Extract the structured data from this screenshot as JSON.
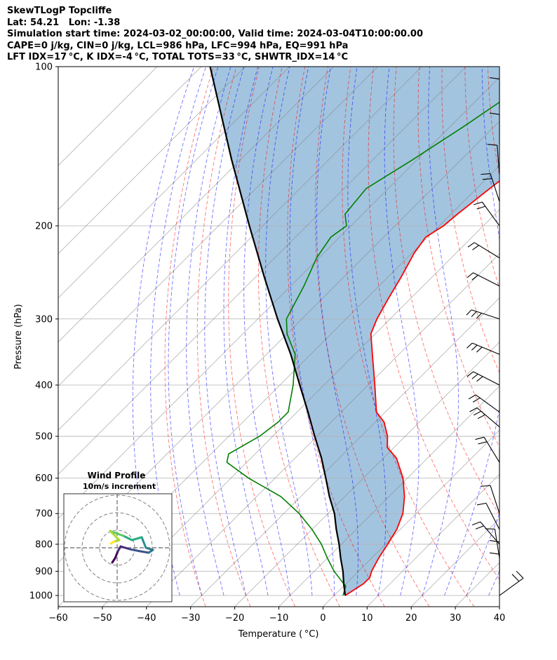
{
  "header": {
    "line1": "SkewTLogP Topcliffe",
    "line2": "Lat: 54.21   Lon: -1.38",
    "line3": "Simulation start time: 2024-03-02_00:00:00, Valid time: 2024-03-04T10:00:00.00",
    "line4": "CAPE=0 j/kg, CIN=0 j/kg, LCL=986 hPa, LFC=994 hPa, EQ=991 hPa",
    "line5": "LFT IDX=17 °C, K IDX=-4 °C, TOTAL TOTS=33 °C, SHWTR_IDX=14 °C"
  },
  "chart_data": {
    "type": "line",
    "xlabel": "Temperature ( °C)",
    "ylabel": "Pressure (hPa)",
    "xlim": [
      -60,
      40
    ],
    "ylim": [
      1050,
      100
    ],
    "y_scale": "log",
    "x_ticks": [
      -60,
      -50,
      -40,
      -30,
      -20,
      -10,
      0,
      10,
      20,
      30,
      40
    ],
    "x_tick_labels": [
      "−60",
      "−50",
      "−40",
      "−30",
      "−20",
      "−10",
      "0",
      "10",
      "20",
      "30",
      "40"
    ],
    "y_ticks": [
      1000,
      900,
      800,
      700,
      600,
      500,
      400,
      300,
      200,
      100
    ],
    "y_tick_labels": [
      "1000",
      "900",
      "800",
      "700",
      "600",
      "500",
      "400",
      "300",
      "200",
      "100"
    ],
    "grid": true,
    "colors": {
      "temperature": "#ff0000",
      "dewpoint": "#008000",
      "parcel": "#000000",
      "shade": "#a3c4df",
      "dry_adiabat": "#ff0000",
      "moist_adiabat": "#0000ff",
      "isotherm": "#808080"
    },
    "series": [
      {
        "key": "temperature",
        "pressure": [
          1000,
          950,
          925,
          900,
          850,
          800,
          750,
          700,
          650,
          600,
          550,
          525,
          500,
          470,
          450,
          400,
          350,
          320,
          300,
          275,
          250,
          225,
          210,
          200,
          190,
          170,
          150,
          130,
          115,
          100
        ],
        "values": [
          2.5,
          4.0,
          4.0,
          3.0,
          1.6,
          0.5,
          -0.8,
          -3.0,
          -6.5,
          -11.0,
          -17.0,
          -21.5,
          -24.0,
          -28.0,
          -32.0,
          -38.5,
          -46.0,
          -51.0,
          -53.0,
          -55.0,
          -57.0,
          -59.5,
          -60.5,
          -59.0,
          -58.5,
          -57.0,
          -55.0,
          -52.0,
          -50.0,
          -48.5
        ]
      },
      {
        "key": "dewpoint",
        "pressure": [
          1000,
          960,
          940,
          900,
          850,
          800,
          750,
          700,
          650,
          600,
          560,
          540,
          500,
          470,
          450,
          400,
          350,
          320,
          300,
          260,
          230,
          210,
          200,
          190,
          170,
          150,
          130,
          115,
          100
        ],
        "values": [
          2.0,
          0.5,
          -1.5,
          -5.5,
          -10.0,
          -14.5,
          -20.0,
          -26.5,
          -34.5,
          -46.0,
          -54.5,
          -56.0,
          -53.0,
          -52.0,
          -52.0,
          -57.0,
          -63.5,
          -70.0,
          -73.5,
          -77.0,
          -80.5,
          -82.0,
          -81.0,
          -84.0,
          -85.0,
          -81.0,
          -77.0,
          -74.0,
          -72.0
        ]
      },
      {
        "key": "parcel",
        "pressure": [
          1000,
          950,
          900,
          850,
          800,
          750,
          700,
          650,
          600,
          550,
          500,
          450,
          400,
          350,
          300,
          250,
          200,
          150,
          100
        ],
        "values": [
          2.5,
          -0.5,
          -3.5,
          -7.0,
          -10.5,
          -14.5,
          -18.5,
          -23.5,
          -28.5,
          -34.0,
          -40.5,
          -47.5,
          -55.5,
          -64.5,
          -75.5,
          -88.0,
          -103.0,
          -122.0,
          -148.0
        ]
      }
    ],
    "wind_barbs": true,
    "inset": {
      "title": "Wind Profile",
      "subtitle": "10m/s increment"
    }
  }
}
